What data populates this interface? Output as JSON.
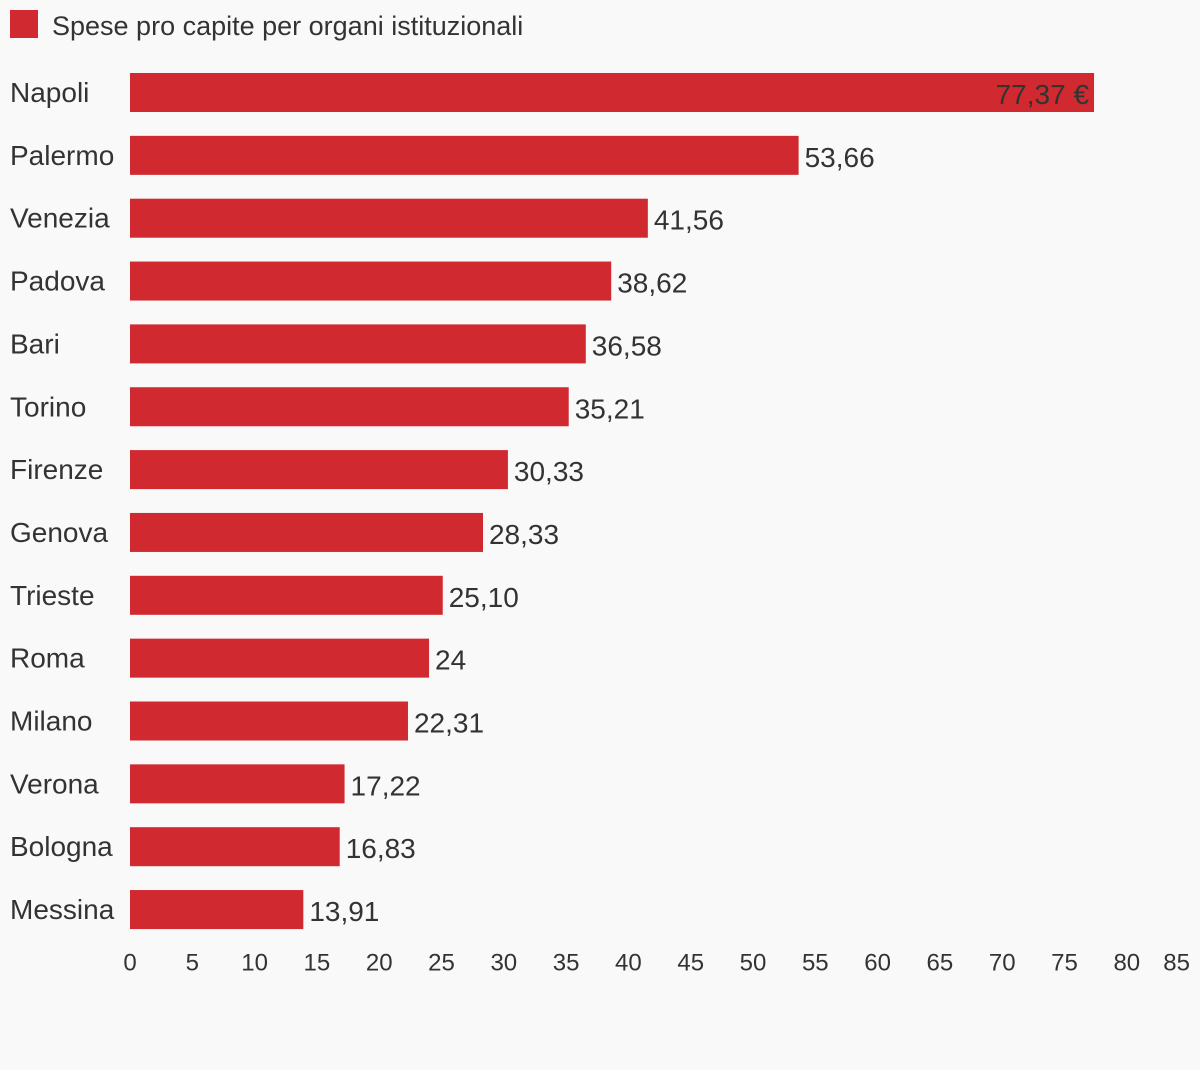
{
  "chart_data": {
    "type": "bar",
    "orientation": "horizontal",
    "title": "",
    "xlabel": "",
    "ylabel": "",
    "legend": {
      "position": "top-left",
      "entries": [
        "Spese pro capite per organi istituzionali"
      ]
    },
    "grid": false,
    "xlim": [
      0,
      85
    ],
    "ticks": [
      "0",
      "5",
      "10",
      "15",
      "20",
      "25",
      "30",
      "35",
      "40",
      "45",
      "50",
      "55",
      "60",
      "65",
      "70",
      "75",
      "80",
      "85"
    ],
    "categories": [
      "Napoli",
      "Palermo",
      "Venezia",
      "Padova",
      "Bari",
      "Torino",
      "Firenze",
      "Genova",
      "Trieste",
      "Roma",
      "Milano",
      "Verona",
      "Bologna",
      "Messina"
    ],
    "series": [
      {
        "name": "Spese pro capite per organi istituzionali",
        "color": "#d0292f",
        "values": [
          77.37,
          53.66,
          41.56,
          38.62,
          36.58,
          35.21,
          30.33,
          28.33,
          25.1,
          24,
          22.31,
          17.22,
          16.83,
          13.91
        ],
        "labels": [
          "77,37 €",
          "53,66",
          "41,56",
          "38,62",
          "36,58",
          "35,21",
          "30,33",
          "28,33",
          "25,10",
          "24",
          "22,31",
          "17,22",
          "16,83",
          "13,91"
        ]
      }
    ]
  }
}
